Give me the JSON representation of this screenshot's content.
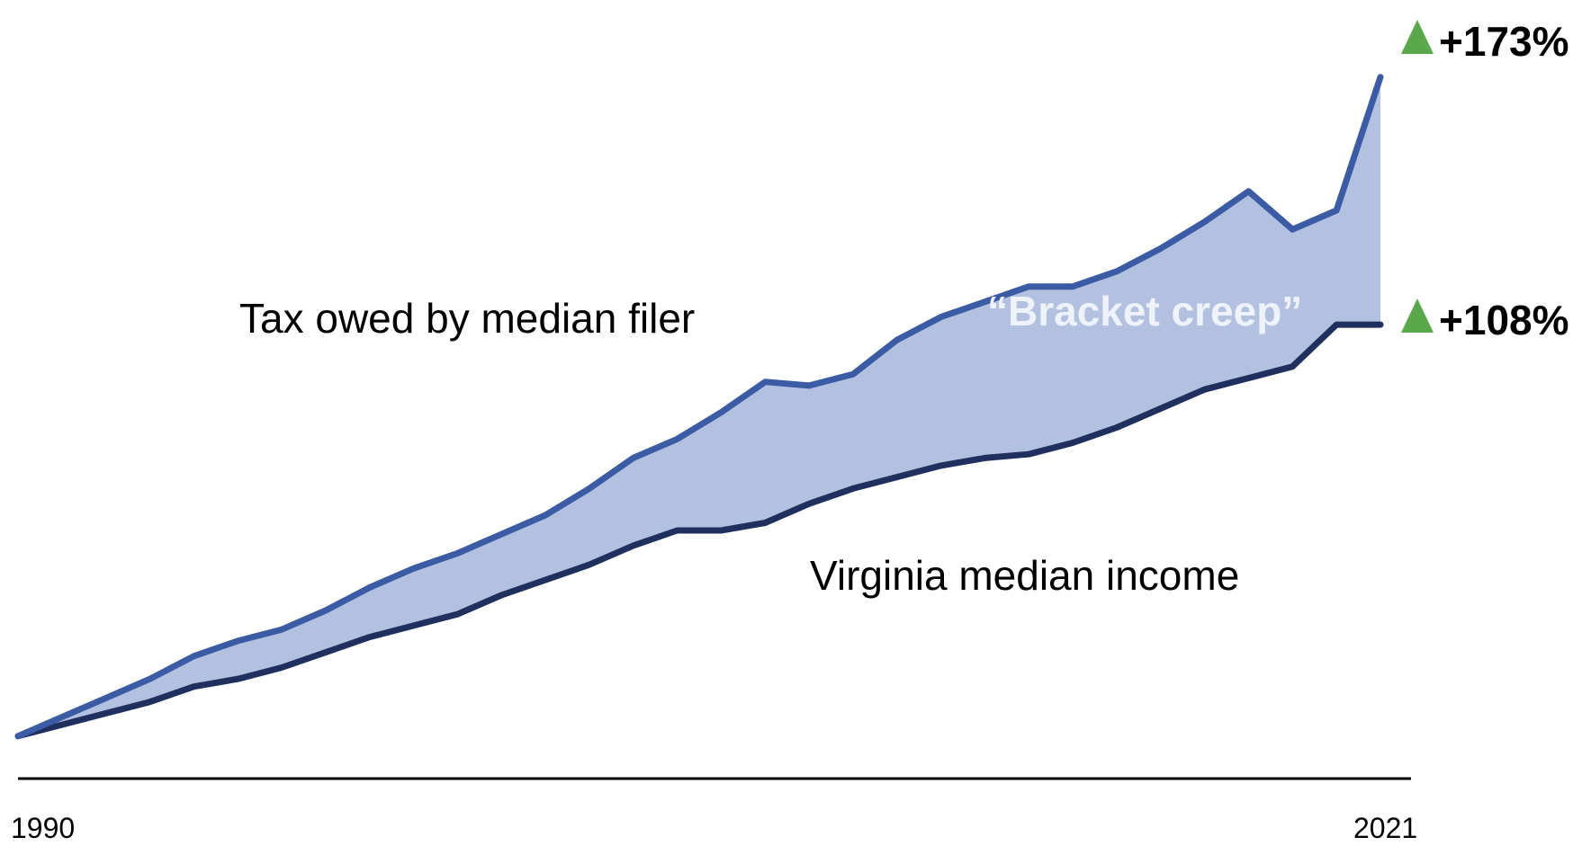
{
  "chart_data": {
    "type": "area",
    "title": "",
    "xlabel": "",
    "ylabel": "",
    "x": [
      1990,
      1991,
      1992,
      1993,
      1994,
      1995,
      1996,
      1997,
      1998,
      1999,
      2000,
      2001,
      2002,
      2003,
      2004,
      2005,
      2006,
      2007,
      2008,
      2009,
      2010,
      2011,
      2012,
      2013,
      2014,
      2015,
      2016,
      2017,
      2018,
      2019,
      2020,
      2021
    ],
    "xlim": [
      1990,
      2021
    ],
    "ylim": [
      -5,
      180
    ],
    "x_tick_labels": [
      "1990",
      "2021"
    ],
    "grid": false,
    "legend": "none",
    "series": [
      {
        "name": "Tax owed by median filer",
        "color": "#3b5ba5",
        "values": [
          0,
          5,
          10,
          15,
          21,
          25,
          28,
          33,
          39,
          44,
          48,
          53,
          58,
          65,
          73,
          78,
          85,
          93,
          92,
          95,
          104,
          110,
          114,
          118,
          118,
          122,
          128,
          135,
          143,
          133,
          138,
          173
        ]
      },
      {
        "name": "Virginia median income",
        "color": "#1f2f5e",
        "values": [
          0,
          3,
          6,
          9,
          13,
          15,
          18,
          22,
          26,
          29,
          32,
          37,
          41,
          45,
          50,
          54,
          54,
          56,
          61,
          65,
          68,
          71,
          73,
          74,
          77,
          81,
          86,
          91,
          94,
          97,
          108,
          108
        ]
      }
    ],
    "fill_between": {
      "label": "“Bracket creep”",
      "color": "#b3c1e0"
    },
    "annotations": [
      {
        "series": "Tax owed by median filer",
        "text": "+173%",
        "marker": "up-triangle",
        "marker_color": "#5aa84b"
      },
      {
        "series": "Virginia median income",
        "text": "+108%",
        "marker": "up-triangle",
        "marker_color": "#5aa84b"
      }
    ]
  }
}
